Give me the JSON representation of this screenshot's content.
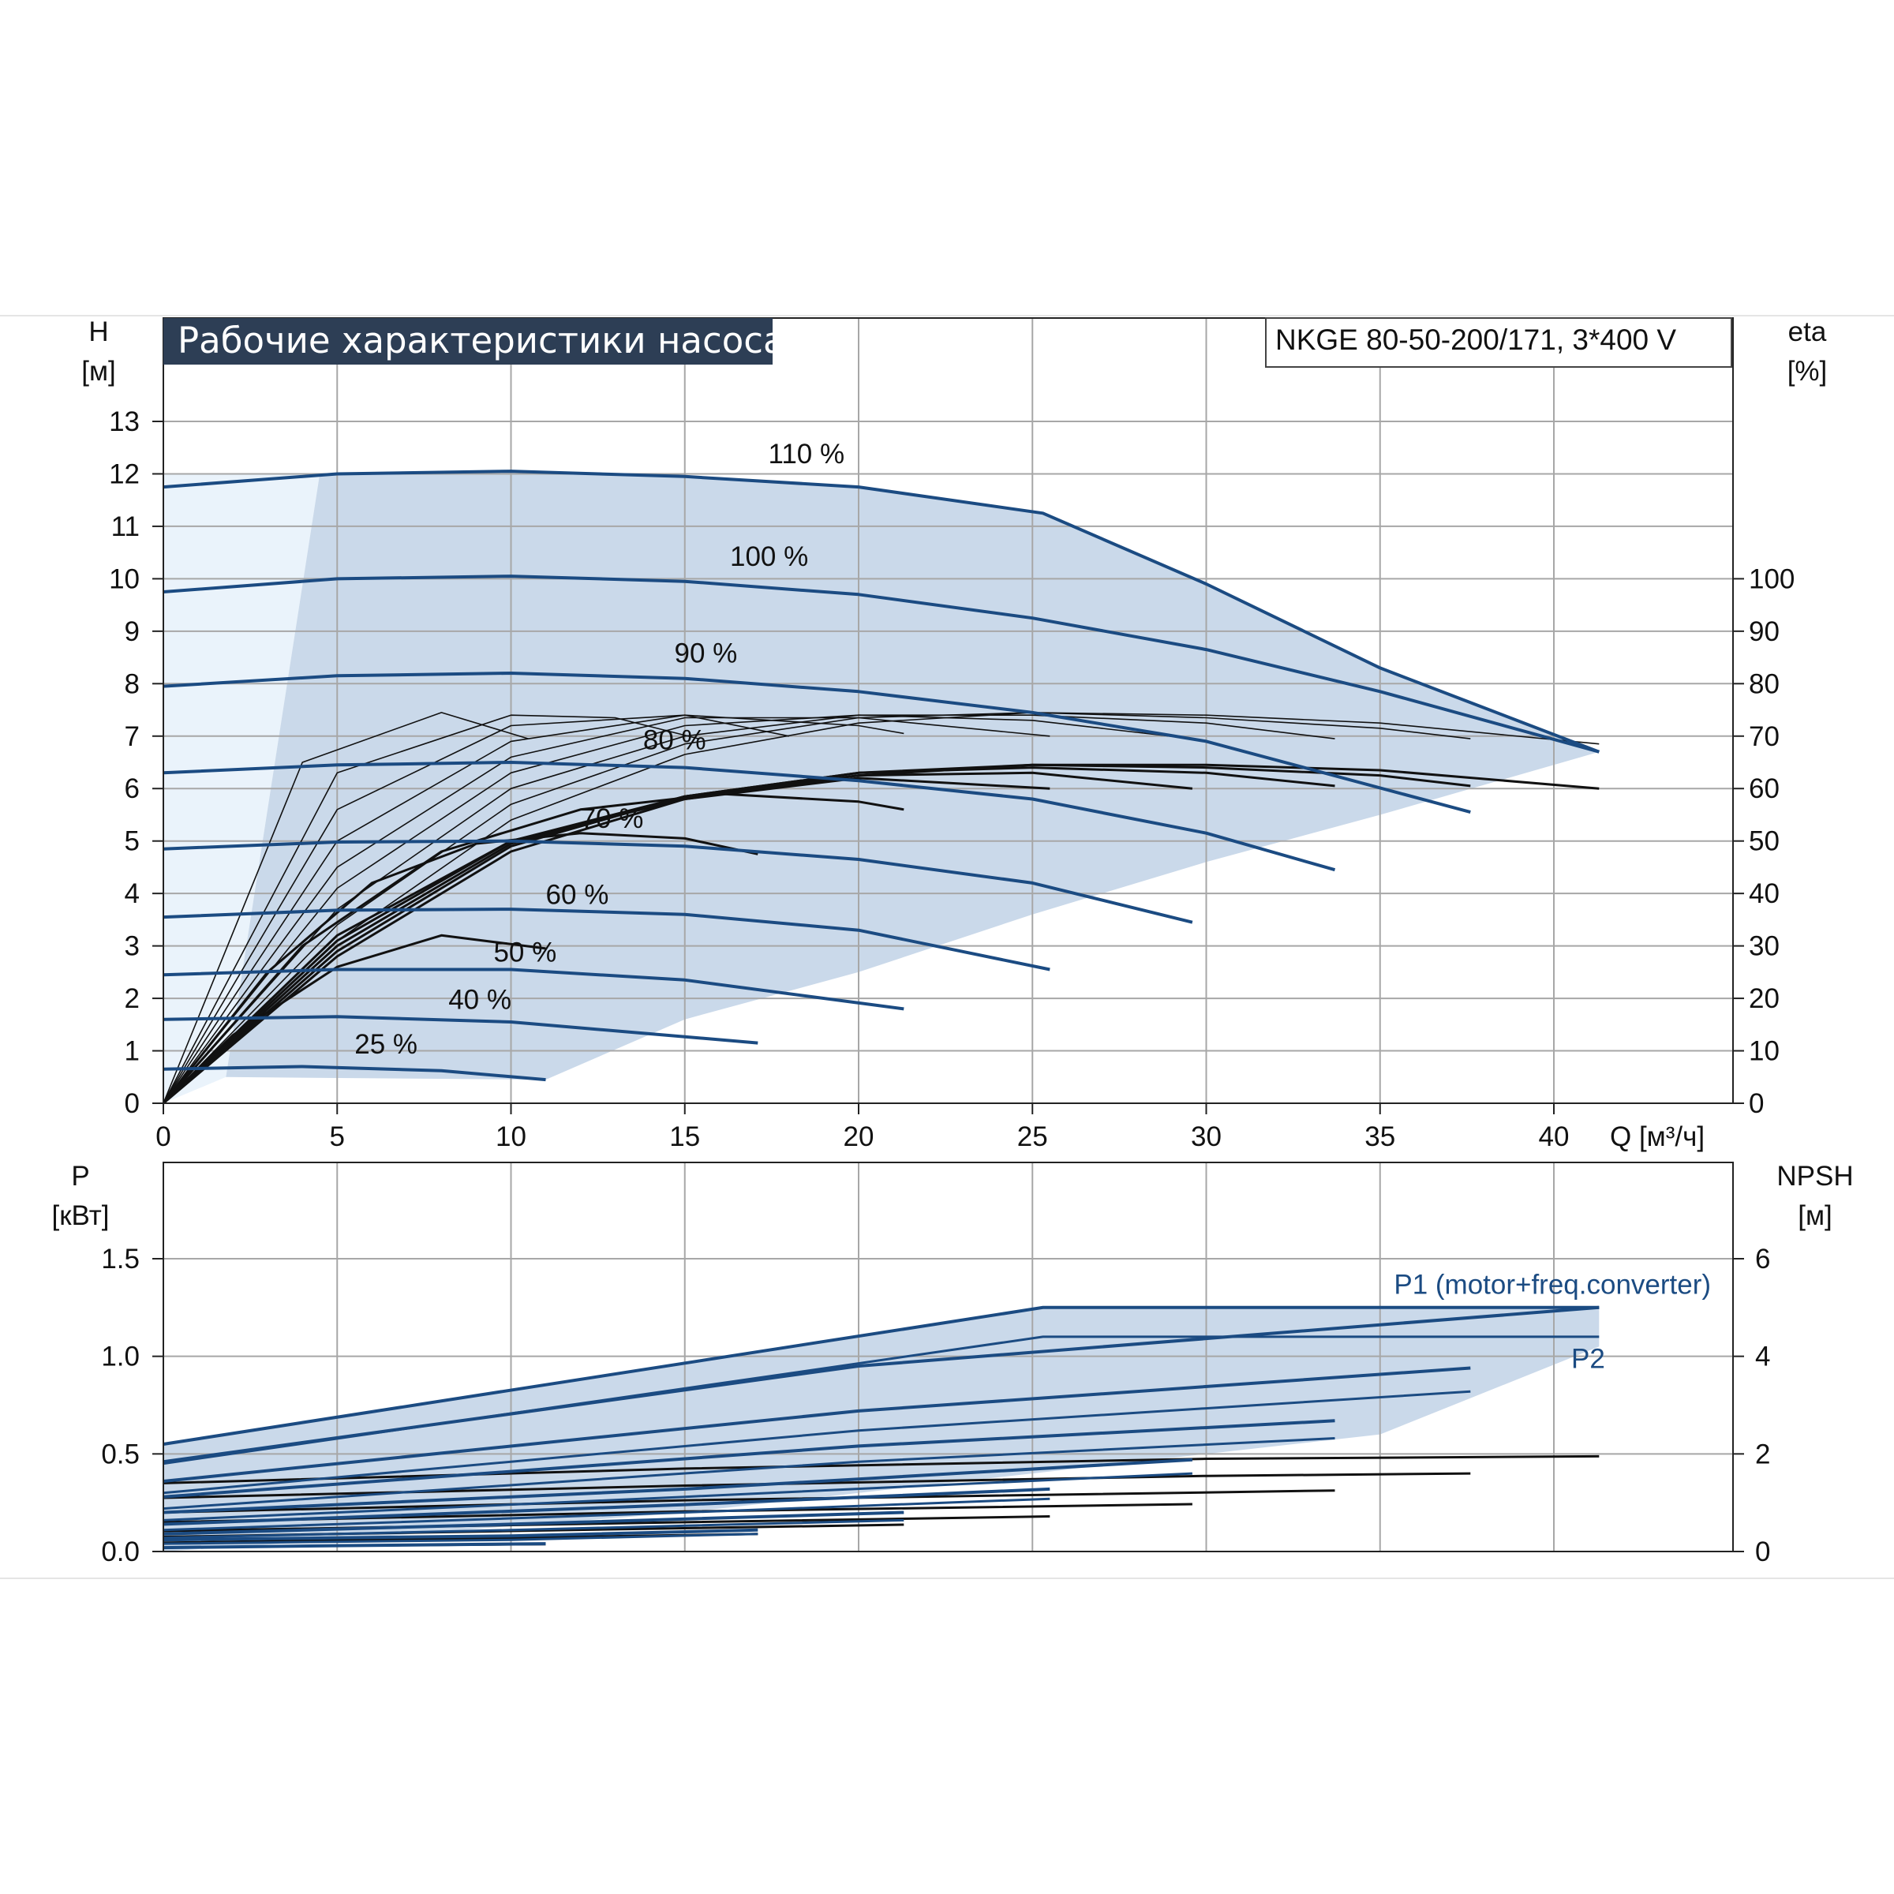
{
  "title": "Рабочие характеристики насоса",
  "model": "NKGE 80-50-200/171, 3*400 V",
  "colors": {
    "curve_blue": "#1b4b82",
    "fill_blue": "#cad9ea",
    "fill_light": "#eaf3fb",
    "title_bg": "#2d3e55",
    "grid": "#a7a7a7",
    "eff_black": "#111111"
  },
  "chart_data": [
    {
      "type": "line",
      "name": "head",
      "ylabel_top": "H",
      "ylabel_unit": "[м]",
      "y2label_top": "eta",
      "y2label_unit": "[%]",
      "xlabel": "Q [м³/ч]",
      "x_ticks": [
        "0",
        "5",
        "10",
        "15",
        "20",
        "25",
        "30",
        "35",
        "40"
      ],
      "y_ticks": [
        "0",
        "1",
        "2",
        "3",
        "4",
        "5",
        "6",
        "7",
        "8",
        "9",
        "10",
        "11",
        "12",
        "13"
      ],
      "y2_ticks": [
        "0",
        "10",
        "20",
        "30",
        "40",
        "50",
        "60",
        "70",
        "80",
        "90",
        "100"
      ],
      "xlim": [
        0,
        45
      ],
      "ylim": [
        0,
        14
      ],
      "grid": true,
      "series": [
        {
          "name": "110 %",
          "label_at": [
            17.4,
            12.2
          ],
          "x": [
            0,
            5,
            10,
            15,
            20,
            25.3,
            30,
            35,
            41.3
          ],
          "y": [
            11.75,
            12.0,
            12.05,
            11.95,
            11.75,
            11.25,
            9.9,
            8.3,
            6.7
          ]
        },
        {
          "name": "100 %",
          "label_at": [
            16.3,
            10.25
          ],
          "x": [
            0,
            5,
            10,
            15,
            20,
            25,
            30,
            35,
            41.3
          ],
          "y": [
            9.75,
            10.0,
            10.05,
            9.95,
            9.7,
            9.25,
            8.65,
            7.85,
            6.7
          ]
        },
        {
          "name": "90 %",
          "label_at": [
            14.7,
            8.4
          ],
          "x": [
            0,
            5,
            10,
            15,
            20,
            25,
            30,
            37.6
          ],
          "y": [
            7.95,
            8.15,
            8.2,
            8.1,
            7.85,
            7.45,
            6.9,
            5.55
          ]
        },
        {
          "name": "80 %",
          "label_at": [
            13.8,
            6.75
          ],
          "x": [
            0,
            5,
            10,
            15,
            20,
            25,
            30,
            33.7
          ],
          "y": [
            6.3,
            6.45,
            6.5,
            6.4,
            6.15,
            5.8,
            5.15,
            4.45
          ]
        },
        {
          "name": "70 %",
          "label_at": [
            12.0,
            5.25
          ],
          "x": [
            0,
            5,
            10,
            15,
            20,
            25,
            29.6
          ],
          "y": [
            4.85,
            4.98,
            5.0,
            4.9,
            4.65,
            4.2,
            3.45
          ]
        },
        {
          "name": "60 %",
          "label_at": [
            11.0,
            3.8
          ],
          "x": [
            0,
            5,
            10,
            15,
            20,
            25.5
          ],
          "y": [
            3.55,
            3.68,
            3.7,
            3.6,
            3.3,
            2.55
          ]
        },
        {
          "name": "50 %",
          "label_at": [
            9.5,
            2.7
          ],
          "x": [
            0,
            5,
            10,
            15,
            21.3
          ],
          "y": [
            2.45,
            2.55,
            2.55,
            2.35,
            1.8
          ]
        },
        {
          "name": "40 %",
          "label_at": [
            8.2,
            1.8
          ],
          "x": [
            0,
            5,
            10,
            17.1
          ],
          "y": [
            1.6,
            1.65,
            1.55,
            1.15
          ]
        },
        {
          "name": "25 %",
          "label_at": [
            5.5,
            0.95
          ],
          "x": [
            0,
            4,
            8,
            11.0
          ],
          "y": [
            0.65,
            0.7,
            0.62,
            0.45
          ]
        }
      ],
      "operating_range_outline": {
        "x": [
          1.8,
          4.5,
          10,
          15,
          20,
          25.3,
          30,
          35,
          41.3,
          35,
          30,
          25,
          20,
          15,
          11.0
        ],
        "y": [
          0.5,
          12.0,
          12.05,
          11.95,
          11.75,
          11.25,
          9.9,
          8.3,
          6.7,
          5.5,
          4.6,
          3.6,
          2.5,
          1.6,
          0.45
        ]
      },
      "efficiency_curves": [
        {
          "x": [
            0,
            4,
            8,
            10.5
          ],
          "y": [
            0,
            6.5,
            7.45,
            6.95
          ]
        },
        {
          "x": [
            0,
            5,
            10,
            13,
            15.4
          ],
          "y": [
            0,
            6.3,
            7.4,
            7.35,
            6.95
          ]
        },
        {
          "x": [
            0,
            5,
            10,
            15,
            18.0
          ],
          "y": [
            0,
            5.6,
            7.2,
            7.4,
            7.0
          ]
        },
        {
          "x": [
            0,
            5,
            10,
            15,
            20,
            21.3
          ],
          "y": [
            0,
            5.0,
            6.9,
            7.4,
            7.2,
            7.05
          ]
        },
        {
          "x": [
            0,
            5,
            10,
            15,
            20,
            25.5
          ],
          "y": [
            0,
            4.5,
            6.6,
            7.35,
            7.35,
            7.0
          ]
        },
        {
          "x": [
            0,
            5,
            10,
            15,
            20,
            25,
            29.6
          ],
          "y": [
            0,
            4.1,
            6.3,
            7.2,
            7.4,
            7.3,
            6.95
          ]
        },
        {
          "x": [
            0,
            5,
            10,
            15,
            20,
            25,
            30,
            33.7
          ],
          "y": [
            0,
            3.7,
            6.0,
            7.0,
            7.4,
            7.4,
            7.25,
            6.95
          ]
        },
        {
          "x": [
            0,
            5,
            10,
            15,
            20,
            25,
            30,
            35,
            37.6
          ],
          "y": [
            0,
            3.4,
            5.7,
            6.85,
            7.35,
            7.45,
            7.35,
            7.15,
            6.95
          ]
        },
        {
          "x": [
            0,
            5,
            10,
            15,
            20,
            25,
            30,
            35,
            41.3
          ],
          "y": [
            0,
            3.1,
            5.4,
            6.65,
            7.25,
            7.45,
            7.4,
            7.25,
            6.85
          ]
        },
        {
          "x": [
            0,
            2,
            5,
            8,
            11.0
          ],
          "y": [
            0,
            1.3,
            2.6,
            3.2,
            2.95
          ]
        },
        {
          "x": [
            0,
            3,
            6,
            9,
            12,
            15,
            17.1
          ],
          "y": [
            0,
            2.5,
            4.2,
            4.95,
            5.15,
            5.05,
            4.75
          ]
        },
        {
          "x": [
            0,
            4,
            8,
            12,
            16,
            20,
            21.3
          ],
          "y": [
            0,
            3.0,
            4.8,
            5.6,
            5.9,
            5.75,
            5.6
          ]
        },
        {
          "x": [
            0,
            5,
            10,
            15,
            20,
            25.5
          ],
          "y": [
            0,
            3.2,
            5.0,
            5.8,
            6.2,
            6.0
          ]
        },
        {
          "x": [
            0,
            5,
            10,
            15,
            20,
            25,
            29.6
          ],
          "y": [
            0,
            3.1,
            5.0,
            5.85,
            6.25,
            6.3,
            6.0
          ]
        },
        {
          "x": [
            0,
            5,
            10,
            15,
            20,
            25,
            30,
            33.7
          ],
          "y": [
            0,
            3.0,
            4.95,
            5.85,
            6.3,
            6.4,
            6.3,
            6.05
          ]
        },
        {
          "x": [
            0,
            5,
            10,
            15,
            20,
            25,
            30,
            35,
            37.6
          ],
          "y": [
            0,
            2.9,
            4.9,
            5.85,
            6.3,
            6.45,
            6.4,
            6.25,
            6.05
          ]
        },
        {
          "x": [
            0,
            5,
            10,
            15,
            20,
            25,
            30,
            35,
            41.3
          ],
          "y": [
            0,
            2.8,
            4.8,
            5.8,
            6.25,
            6.45,
            6.45,
            6.35,
            6.0
          ]
        }
      ]
    },
    {
      "type": "line",
      "name": "power",
      "ylabel_top": "P",
      "ylabel_unit": "[кВт]",
      "y2label_top": "NPSH",
      "y2label_unit": "[м]",
      "y_ticks": [
        "0.0",
        "0.5",
        "1.0",
        "1.5"
      ],
      "y2_ticks": [
        "0",
        "2",
        "4",
        "6"
      ],
      "xlim": [
        0,
        45
      ],
      "ylim": [
        0,
        1.5
      ],
      "y2lim": [
        0,
        6
      ],
      "grid": true,
      "legend": [
        {
          "label": "P1 (motor+freq.converter)",
          "label_at": [
            35.4,
            1.32
          ]
        },
        {
          "label": "P2",
          "label_at": [
            40.5,
            0.94
          ]
        }
      ],
      "series_p1": [
        {
          "x": [
            0,
            25.3,
            41.3
          ],
          "y": [
            0.55,
            1.25,
            1.25
          ]
        },
        {
          "x": [
            0,
            20,
            41.3
          ],
          "y": [
            0.46,
            0.95,
            1.25
          ]
        },
        {
          "x": [
            0,
            20,
            37.6
          ],
          "y": [
            0.36,
            0.72,
            0.94
          ]
        },
        {
          "x": [
            0,
            20,
            33.7
          ],
          "y": [
            0.28,
            0.54,
            0.67
          ]
        },
        {
          "x": [
            0,
            15,
            29.6
          ],
          "y": [
            0.2,
            0.32,
            0.47
          ]
        },
        {
          "x": [
            0,
            15,
            25.5
          ],
          "y": [
            0.14,
            0.24,
            0.32
          ]
        },
        {
          "x": [
            0,
            10,
            21.3
          ],
          "y": [
            0.09,
            0.14,
            0.2
          ]
        },
        {
          "x": [
            0,
            10,
            17.1
          ],
          "y": [
            0.06,
            0.08,
            0.11
          ]
        },
        {
          "x": [
            0,
            5,
            11.0
          ],
          "y": [
            0.02,
            0.03,
            0.04
          ]
        }
      ],
      "series_p2": [
        {
          "x": [
            0,
            25.3,
            41.3
          ],
          "y": [
            0.45,
            1.1,
            1.1
          ]
        },
        {
          "x": [
            0,
            20,
            37.6
          ],
          "y": [
            0.3,
            0.62,
            0.82
          ]
        },
        {
          "x": [
            0,
            20,
            33.7
          ],
          "y": [
            0.22,
            0.46,
            0.58
          ]
        },
        {
          "x": [
            0,
            15,
            29.6
          ],
          "y": [
            0.16,
            0.28,
            0.4
          ]
        },
        {
          "x": [
            0,
            15,
            25.5
          ],
          "y": [
            0.11,
            0.2,
            0.27
          ]
        },
        {
          "x": [
            0,
            10,
            21.3
          ],
          "y": [
            0.07,
            0.11,
            0.16
          ]
        },
        {
          "x": [
            0,
            10,
            17.1
          ],
          "y": [
            0.04,
            0.06,
            0.09
          ]
        }
      ],
      "series_npsh": [
        {
          "x": [
            0,
            15,
            30,
            41.3
          ],
          "y": [
            1.4,
            1.7,
            1.9,
            1.95
          ]
        },
        {
          "x": [
            0,
            15,
            30,
            37.6
          ],
          "y": [
            1.1,
            1.35,
            1.55,
            1.6
          ]
        },
        {
          "x": [
            0,
            15,
            33.7
          ],
          "y": [
            0.8,
            1.05,
            1.25
          ]
        },
        {
          "x": [
            0,
            15,
            29.6
          ],
          "y": [
            0.6,
            0.82,
            0.97
          ]
        },
        {
          "x": [
            0,
            15,
            25.5
          ],
          "y": [
            0.42,
            0.6,
            0.72
          ]
        },
        {
          "x": [
            0,
            10,
            21.3
          ],
          "y": [
            0.3,
            0.42,
            0.55
          ]
        },
        {
          "x": [
            0,
            10,
            17.1
          ],
          "y": [
            0.18,
            0.28,
            0.36
          ]
        },
        {
          "x": [
            0,
            5,
            11.0
          ],
          "y": [
            0.08,
            0.12,
            0.15
          ]
        }
      ],
      "band_outline": {
        "x": [
          0,
          25.3,
          41.3,
          41.3,
          35,
          25,
          15,
          5,
          0
        ],
        "y": [
          0.55,
          1.25,
          1.25,
          1.05,
          0.6,
          0.4,
          0.2,
          0.06,
          0.0
        ]
      }
    }
  ]
}
